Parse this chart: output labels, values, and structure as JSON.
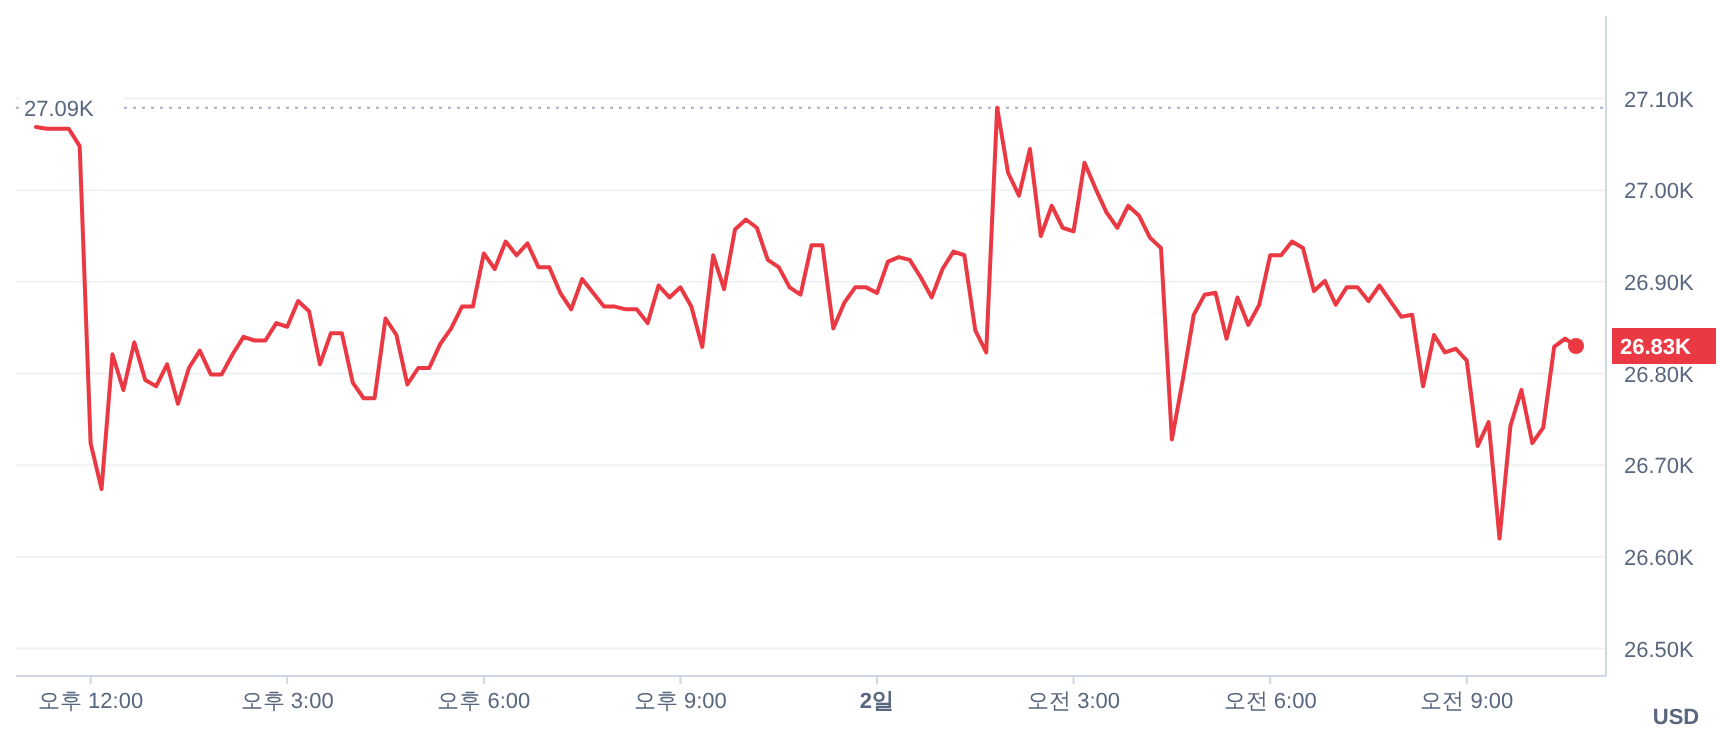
{
  "chart_data": {
    "type": "line",
    "ylabel": "USD",
    "categories": [
      null,
      null,
      null,
      null,
      null,
      "오후 12:00",
      null,
      null,
      null,
      null,
      null,
      null,
      null,
      null,
      null,
      null,
      null,
      null,
      null,
      null,
      null,
      null,
      null,
      "오후 3:00",
      null,
      null,
      null,
      null,
      null,
      null,
      null,
      null,
      null,
      null,
      null,
      null,
      null,
      null,
      null,
      null,
      null,
      "오후 6:00",
      null,
      null,
      null,
      null,
      null,
      null,
      null,
      null,
      null,
      null,
      null,
      null,
      null,
      null,
      null,
      null,
      null,
      "오후 9:00",
      null,
      null,
      null,
      null,
      null,
      null,
      null,
      null,
      null,
      null,
      null,
      null,
      null,
      null,
      null,
      null,
      null,
      "**2일**",
      null,
      null,
      null,
      null,
      null,
      null,
      null,
      null,
      null,
      null,
      null,
      null,
      null,
      null,
      null,
      null,
      null,
      "오전 3:00",
      null,
      null,
      null,
      null,
      null,
      null,
      null,
      null,
      null,
      null,
      null,
      null,
      null,
      null,
      null,
      null,
      null,
      "오전 6:00",
      null,
      null,
      null,
      null,
      null,
      null,
      null,
      null,
      null,
      null,
      null,
      null,
      null,
      null,
      null,
      null,
      null,
      "오전 9:00",
      null,
      null,
      null,
      null,
      null,
      null,
      null,
      null,
      null,
      null
    ],
    "series": [
      {
        "color": "#ea3943",
        "values": [
          27.069,
          27.067,
          27.067,
          27.067,
          27.048,
          26.724,
          26.674,
          26.821,
          26.782,
          26.834,
          26.793,
          26.786,
          26.81,
          26.767,
          26.806,
          26.825,
          26.799,
          26.799,
          26.821,
          26.84,
          26.836,
          26.836,
          26.855,
          26.851,
          26.879,
          26.868,
          26.81,
          26.844,
          26.844,
          26.79,
          26.773,
          26.773,
          26.86,
          26.842,
          26.788,
          26.806,
          26.806,
          26.832,
          26.849,
          26.873,
          26.873,
          26.931,
          26.914,
          26.944,
          26.929,
          26.942,
          26.916,
          26.916,
          26.888,
          26.87,
          26.903,
          26.888,
          26.873,
          26.873,
          26.87,
          26.87,
          26.855,
          26.896,
          26.883,
          26.894,
          26.873,
          26.829,
          26.929,
          26.892,
          26.957,
          26.968,
          26.959,
          26.924,
          26.916,
          26.894,
          26.886,
          26.94,
          26.94,
          26.849,
          26.877,
          26.894,
          26.894,
          26.888,
          26.922,
          26.927,
          26.924,
          26.905,
          26.883,
          26.914,
          26.933,
          26.929,
          26.847,
          26.823,
          27.09,
          27.019,
          26.994,
          27.045,
          26.95,
          26.983,
          26.959,
          26.955,
          27.03,
          27.002,
          26.976,
          26.959,
          26.983,
          26.972,
          26.948,
          26.937,
          26.728,
          26.793,
          26.864,
          26.886,
          26.888,
          26.838,
          26.883,
          26.853,
          26.875,
          26.929,
          26.929,
          26.944,
          26.937,
          26.89,
          26.901,
          26.875,
          26.894,
          26.894,
          26.879,
          26.896,
          26.879,
          26.862,
          26.864,
          26.786,
          26.842,
          26.823,
          26.827,
          26.814,
          26.721,
          26.747,
          26.62,
          26.743,
          26.782,
          26.724,
          26.741,
          26.829,
          26.838,
          26.83
        ]
      }
    ],
    "ylim": [
      26.47,
      27.19
    ],
    "yticks": [
      {
        "value": 26.5,
        "label": "26.50K"
      },
      {
        "value": 26.6,
        "label": "26.60K"
      },
      {
        "value": 26.7,
        "label": "26.70K"
      },
      {
        "value": 26.8,
        "label": "26.80K"
      },
      {
        "value": 26.9,
        "label": "26.90K"
      },
      {
        "value": 27.0,
        "label": "27.00K"
      },
      {
        "value": 27.1,
        "label": "27.10K"
      }
    ],
    "grid": "y",
    "line_style": "solid",
    "ref_lines": [
      {
        "axis": "y",
        "value": 27.09,
        "label": "27.09K",
        "color": "#a6b0c3",
        "line_style": "dotted"
      }
    ],
    "annotations": [
      "26.83K"
    ]
  }
}
